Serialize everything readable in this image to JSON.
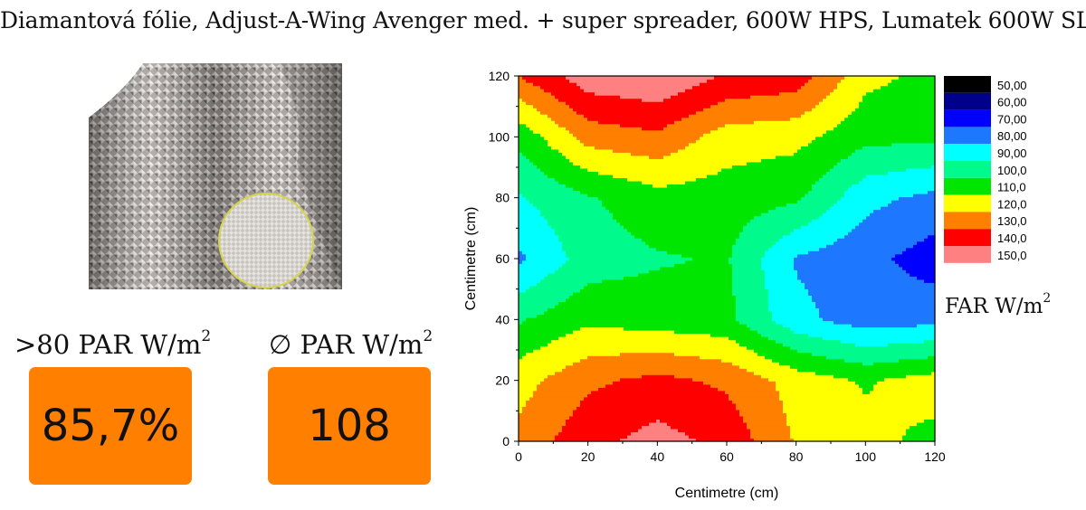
{
  "header": {
    "title": "Diamantová fólie, Adjust-A-Wing Avenger med. + super spreader, 600W HPS, Lumatek 600W SL"
  },
  "stats": [
    {
      "label_prefix": ">80 PAR W/m",
      "label_exp": "2",
      "value": "85,7%"
    },
    {
      "label_prefix": "∅ PAR W/m",
      "label_exp": "2",
      "value": "108"
    }
  ],
  "colors": {
    "stat_box": "#ff7f00"
  },
  "chart_data": {
    "type": "contour",
    "xlabel": "Centimetre (cm)",
    "ylabel": "Centimetre (cm)",
    "xlim": [
      0,
      120
    ],
    "ylim": [
      0,
      120
    ],
    "xticks": [
      "0",
      "20",
      "40",
      "60",
      "80",
      "100",
      "120"
    ],
    "yticks": [
      "0",
      "20",
      "40",
      "60",
      "80",
      "100",
      "120"
    ],
    "x": [
      0,
      20,
      40,
      60,
      80,
      100,
      120
    ],
    "y": [
      0,
      20,
      40,
      60,
      80,
      100,
      120
    ],
    "z": [
      [
        128,
        142,
        149,
        142,
        124,
        118,
        112
      ],
      [
        121,
        133,
        138,
        133,
        121,
        114,
        120
      ],
      [
        104,
        113,
        110,
        108,
        88,
        80,
        82
      ],
      [
        83,
        100,
        104,
        106,
        84,
        78,
        70
      ],
      [
        94,
        104,
        111,
        110,
        107,
        88,
        82
      ],
      [
        108,
        129,
        133,
        120,
        118,
        108,
        107
      ],
      [
        135,
        151,
        154,
        144,
        141,
        118,
        112
      ]
    ],
    "legend_title_prefix": "FAR W/m",
    "legend_title_exp": "2",
    "legend_position": "right",
    "legend": [
      {
        "label": "50,00",
        "color": "#000000"
      },
      {
        "label": "60,00",
        "color": "#00008b"
      },
      {
        "label": "70,00",
        "color": "#0000ff"
      },
      {
        "label": "80,00",
        "color": "#1e78ff"
      },
      {
        "label": "90,00",
        "color": "#00ffff"
      },
      {
        "label": "100,0",
        "color": "#00fa8c"
      },
      {
        "label": "110,0",
        "color": "#00e600"
      },
      {
        "label": "120,0",
        "color": "#ffff00"
      },
      {
        "label": "130,0",
        "color": "#ff7f00"
      },
      {
        "label": "140,0",
        "color": "#ff0000"
      },
      {
        "label": "150,0",
        "color": "#ff8080"
      }
    ]
  }
}
